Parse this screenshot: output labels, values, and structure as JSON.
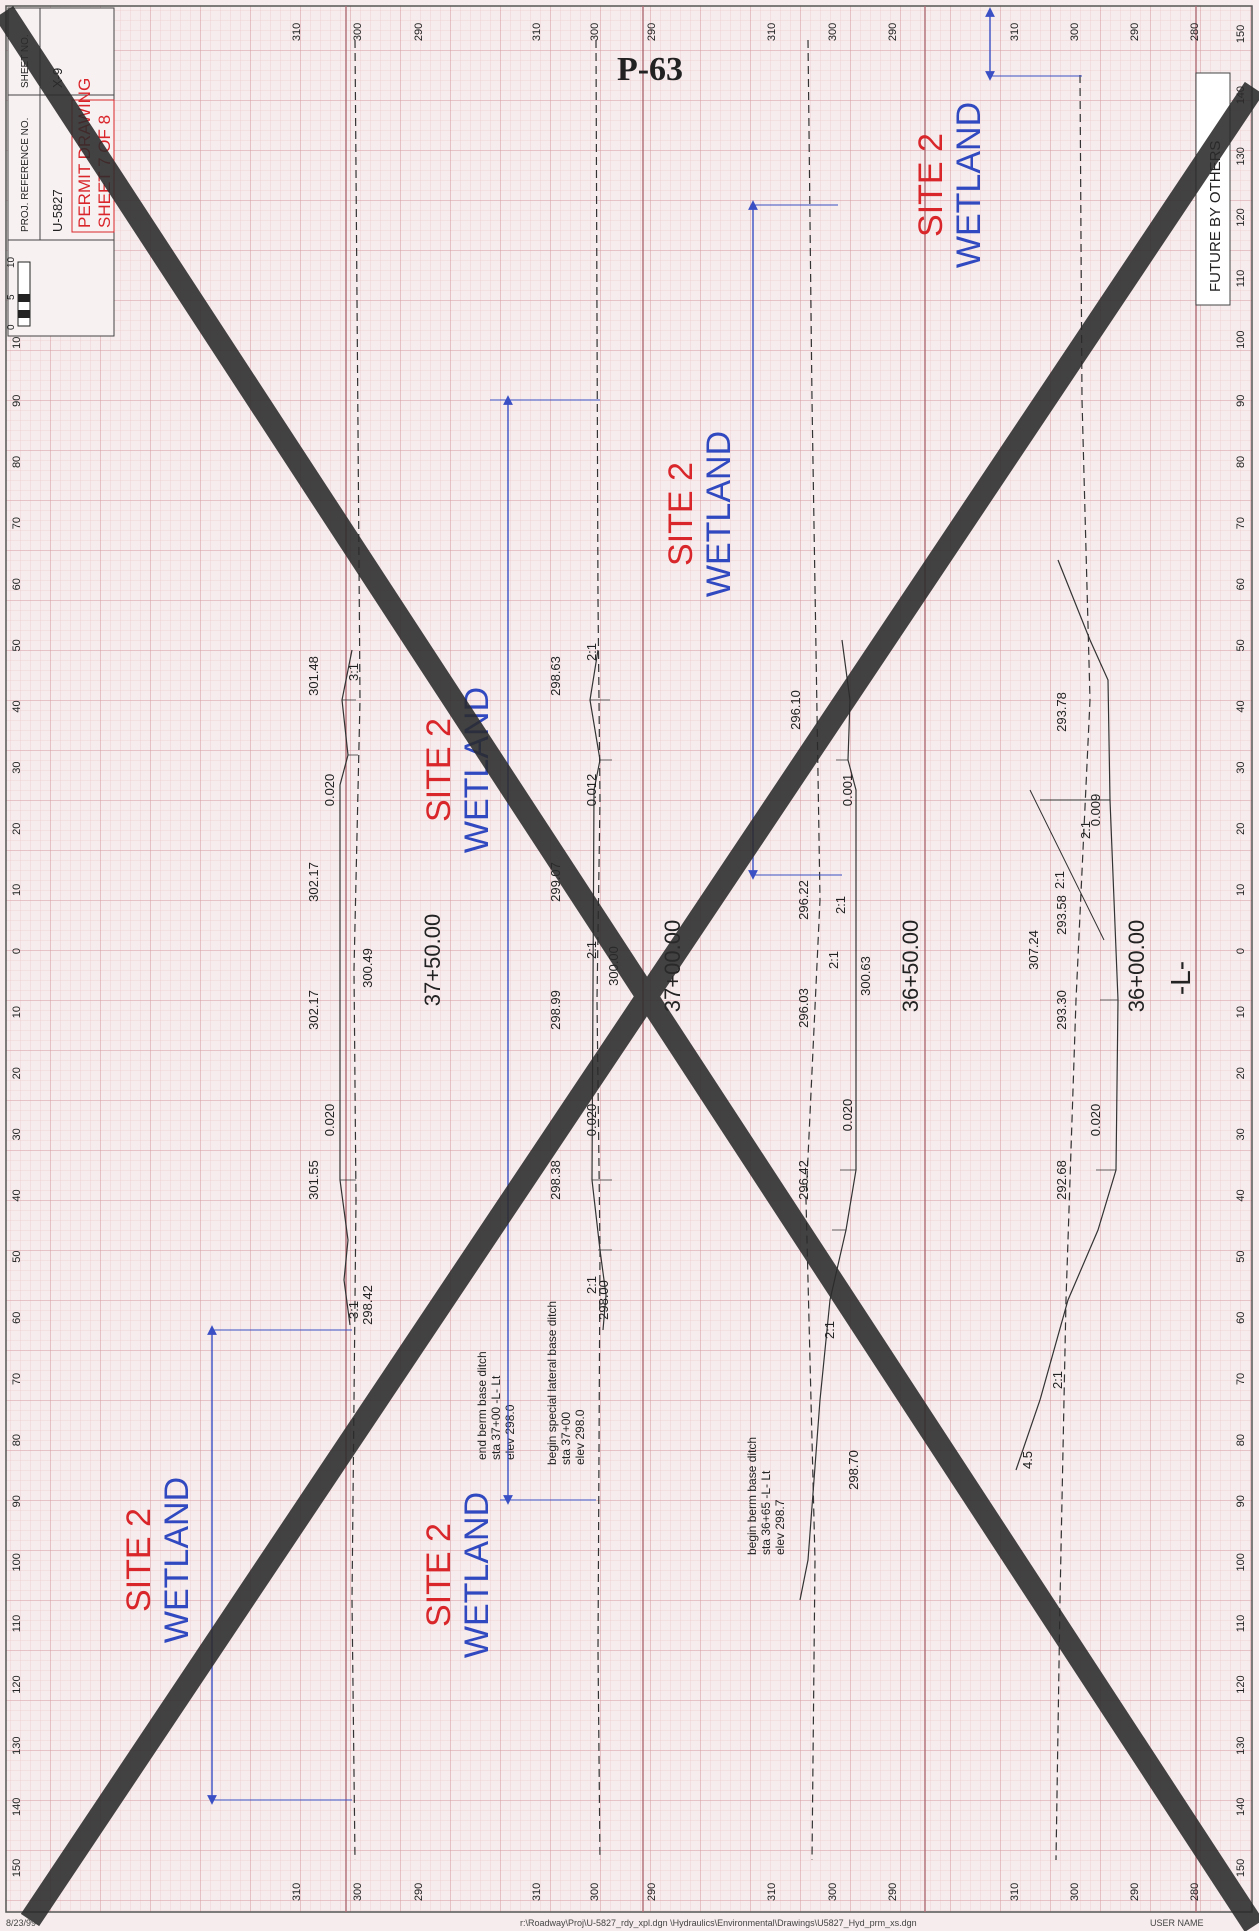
{
  "sheet": {
    "title": "P-63",
    "sheet_no_label": "SHEET NO.",
    "sheet_no": "X-9",
    "proj_ref_label": "PROJ. REFERENCE NO.",
    "proj_ref": "U-5827",
    "permit": "PERMIT DRAWING",
    "sheet_of": "SHEET 7 OF 8",
    "scale_numbers": [
      "0",
      "5",
      "10"
    ],
    "future_label": "FUTURE BY OTHERS",
    "alignment": "-L-",
    "footer_date": "8/23/99",
    "footer_path": "r:\\Roadway\\Proj\\U-5827_rdy_xpl.dgn  \\Hydraulics\\Environmental\\Drawings\\U5827_Hyd_prm_xs.dgn",
    "footer_user": "USER NAME"
  },
  "colors": {
    "grid": "#e7b6bb",
    "paper": "#f6eced",
    "line": "#222222",
    "site": "#d9262b",
    "wetland": "#3149c0",
    "arrow": "#3a4fc4",
    "cross": "#2b2b2b"
  },
  "axes": {
    "offsets": [
      "150",
      "140",
      "130",
      "120",
      "110",
      "100",
      "90",
      "80",
      "70",
      "60",
      "50",
      "40",
      "30",
      "20",
      "10",
      "0",
      "10",
      "20",
      "30",
      "40",
      "50",
      "60",
      "70",
      "80",
      "90",
      "100",
      "110",
      "120",
      "130",
      "140",
      "150"
    ],
    "elev_labels": {
      "s1": [
        "310",
        "300",
        "290"
      ],
      "s2": [
        "310",
        "300",
        "290"
      ],
      "s3": [
        "310",
        "300",
        "290"
      ],
      "s4": [
        "310",
        "300",
        "290",
        "280"
      ]
    }
  },
  "stations": [
    {
      "name": "37+50.00",
      "labels": {
        "l1": "301.48",
        "l2": "302.17",
        "l3": "302.17",
        "l4": "301.55",
        "l5": "298.42",
        "center": "300.49",
        "slope_l": "0.020",
        "slope_r": "0.020",
        "s_l": "3:1",
        "s_r": "3:1"
      }
    },
    {
      "name": "37+00.00",
      "labels": {
        "l1": "298.63",
        "l2": "299.07",
        "l3": "298.99",
        "l4": "298.38",
        "l5": "298.00",
        "center": "300.00",
        "slope_l": "0.012",
        "slope_r": "0.020",
        "s_l": "2:1",
        "s_r": "2:1",
        "s_c": "2:1"
      }
    },
    {
      "name": "36+50.00",
      "labels": {
        "l1": "296.10",
        "l2": "296.22",
        "l3": "296.03",
        "l4": "296.42",
        "l5": "298.70",
        "center": "300.63",
        "slope_l": "0.001",
        "slope_r": "0.020",
        "s_l": "2:1",
        "s_c": "2:1",
        "s_r": "2:1"
      }
    },
    {
      "name": "36+00.00",
      "labels": {
        "l1": "293.78",
        "l2": "293.58",
        "l3": "293.30",
        "l4": "292.68",
        "center": "307.24",
        "slope_l": "0.009",
        "slope_r": "0.020",
        "s_l": "2:1",
        "s_c": "2:1",
        "s_r": "2:1",
        "small": "4.5"
      }
    }
  ],
  "notes": {
    "berm_end": [
      "end berm base ditch",
      "sta 37+00 -L- Lt",
      "elev 298.0"
    ],
    "lateral_begin": [
      "begin special lateral base ditch",
      "sta 37+00",
      "elev 298.0"
    ],
    "berm_begin": [
      "begin berm base ditch",
      "sta 36+65 -L- Lt",
      "elev 298.7"
    ]
  },
  "wetland_labels": [
    {
      "site": "SITE 2",
      "wetland": "WETLAND"
    },
    {
      "site": "SITE 2",
      "wetland": "WETLAND"
    },
    {
      "site": "SITE 2",
      "wetland": "WETLAND"
    },
    {
      "site": "SITE 2",
      "wetland": "WETLAND"
    },
    {
      "site": "SITE 2",
      "wetland": "WETLAND"
    }
  ]
}
